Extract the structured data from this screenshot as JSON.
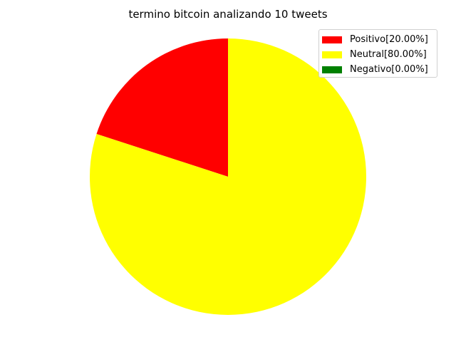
{
  "chart_data": {
    "type": "pie",
    "title": "termino bitcoin analizando 10 tweets",
    "slices": [
      {
        "label": "Positivo[20.00%]",
        "value": 20.0,
        "color": "#ff0000"
      },
      {
        "label": "Neutral[80.00%]",
        "value": 80.0,
        "color": "#ffff00"
      },
      {
        "label": "Negativo[0.00%]",
        "value": 0.0,
        "color": "#008000"
      }
    ],
    "start_angle_deg": 90,
    "direction": "counterclockwise",
    "legend_placement": "top-right"
  }
}
